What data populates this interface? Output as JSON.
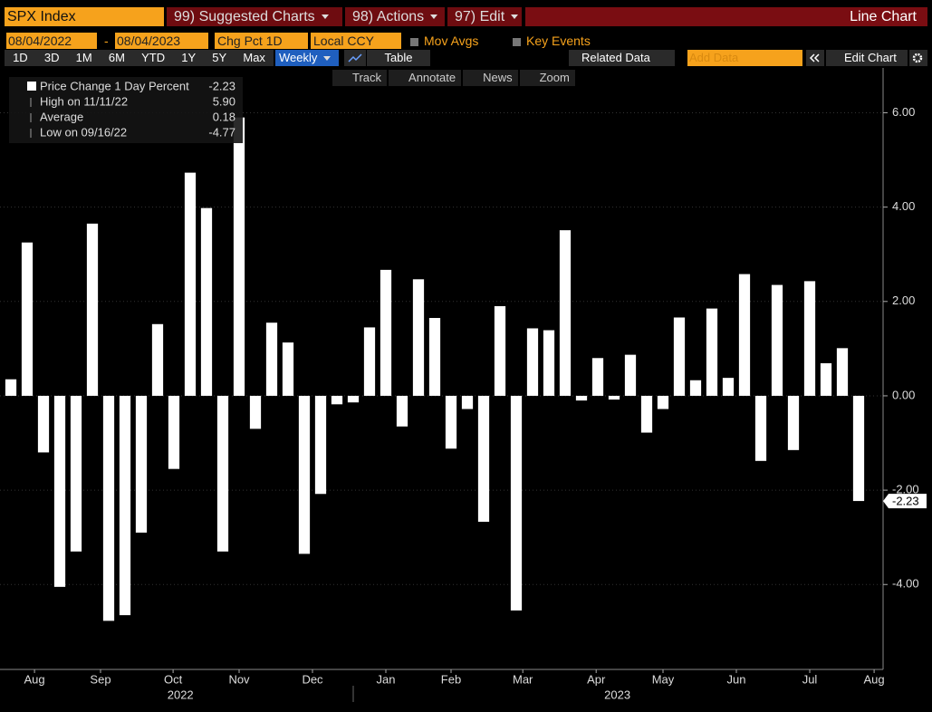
{
  "toolbar": {
    "security": "SPX Index",
    "menus": [
      "99) Suggested Charts",
      "98) Actions",
      "97) Edit"
    ],
    "chart_kind": "Line Chart",
    "start_date": "08/04/2022",
    "end_date": "08/04/2023",
    "date_separator": "-",
    "field": "Chg Pct 1D",
    "currency": "Local CCY",
    "toggles": [
      "Mov Avgs",
      "Key Events"
    ],
    "periods": [
      "1D",
      "3D",
      "1M",
      "6M",
      "YTD",
      "1Y",
      "5Y",
      "Max"
    ],
    "frequency": "Weekly",
    "table": "Table",
    "related": "Related Data",
    "add_data": "Add Data",
    "edit_chart": "Edit Chart",
    "tools": [
      "Track",
      "Annotate",
      "News",
      "Zoom"
    ]
  },
  "chart_data": {
    "type": "bar",
    "categories": [
      null,
      null,
      null,
      null,
      null,
      null,
      null,
      null,
      null,
      null,
      null,
      null,
      null,
      null,
      null,
      null,
      null,
      null,
      null,
      null,
      null,
      null,
      null,
      null,
      null,
      null,
      null,
      null,
      null,
      null,
      null,
      null,
      null,
      null,
      null,
      null,
      null,
      null,
      null,
      null,
      null,
      null,
      null,
      null,
      null,
      null,
      null,
      null,
      null,
      null,
      null,
      null,
      null
    ],
    "series": [
      {
        "name": "Price Change 1 Day Percent",
        "color": "#ffffff",
        "values": [
          0.35,
          3.25,
          -1.2,
          -4.05,
          -3.3,
          3.65,
          -4.77,
          -4.65,
          -2.9,
          1.52,
          -1.55,
          4.73,
          3.98,
          -3.3,
          5.9,
          -0.7,
          1.55,
          1.13,
          -3.35,
          -2.08,
          -0.18,
          -0.14,
          1.45,
          2.67,
          -0.65,
          2.47,
          1.65,
          -1.12,
          -0.28,
          -2.67,
          1.9,
          -4.55,
          1.43,
          1.39,
          3.51,
          -0.1,
          0.8,
          -0.08,
          0.87,
          -0.78,
          -0.28,
          1.66,
          0.33,
          1.85,
          0.38,
          2.58,
          -1.38,
          2.35,
          -1.15,
          2.43,
          0.69,
          1.01,
          -2.23
        ]
      }
    ],
    "legend_stats": [
      {
        "name": "High on 11/11/22",
        "value": "5.90"
      },
      {
        "name": "Average",
        "value": "0.18"
      },
      {
        "name": "Low on 09/16/22",
        "value": "-4.77"
      }
    ],
    "ylim": [
      -5.8,
      6.95
    ],
    "yticks": [
      {
        "value": -4,
        "label": "-4.00"
      },
      {
        "value": -2,
        "label": "-2.00"
      },
      {
        "value": 0,
        "label": "0.00"
      },
      {
        "value": 2,
        "label": "2.00"
      },
      {
        "value": 4,
        "label": "4.00"
      },
      {
        "value": 6,
        "label": "6.00"
      }
    ],
    "xticks": [
      {
        "value": 1.45,
        "label": "Aug"
      },
      {
        "value": 5.5,
        "label": "Sep"
      },
      {
        "value": 9.95,
        "label": "Oct"
      },
      {
        "value": 14,
        "label": "Nov"
      },
      {
        "value": 18.5,
        "label": "Dec"
      },
      {
        "value": 23,
        "label": "Jan"
      },
      {
        "value": 27,
        "label": "Feb"
      },
      {
        "value": 31.4,
        "label": "Mar"
      },
      {
        "value": 35.9,
        "label": "Apr"
      },
      {
        "value": 40,
        "label": "May"
      },
      {
        "value": 44.5,
        "label": "Jun"
      },
      {
        "value": 49,
        "label": "Jul"
      },
      {
        "value": 52.95,
        "label": "Aug"
      }
    ],
    "year_ticks": [
      {
        "value": 10.4,
        "label": "2022"
      },
      {
        "value": 37.2,
        "label": "2023"
      }
    ]
  }
}
